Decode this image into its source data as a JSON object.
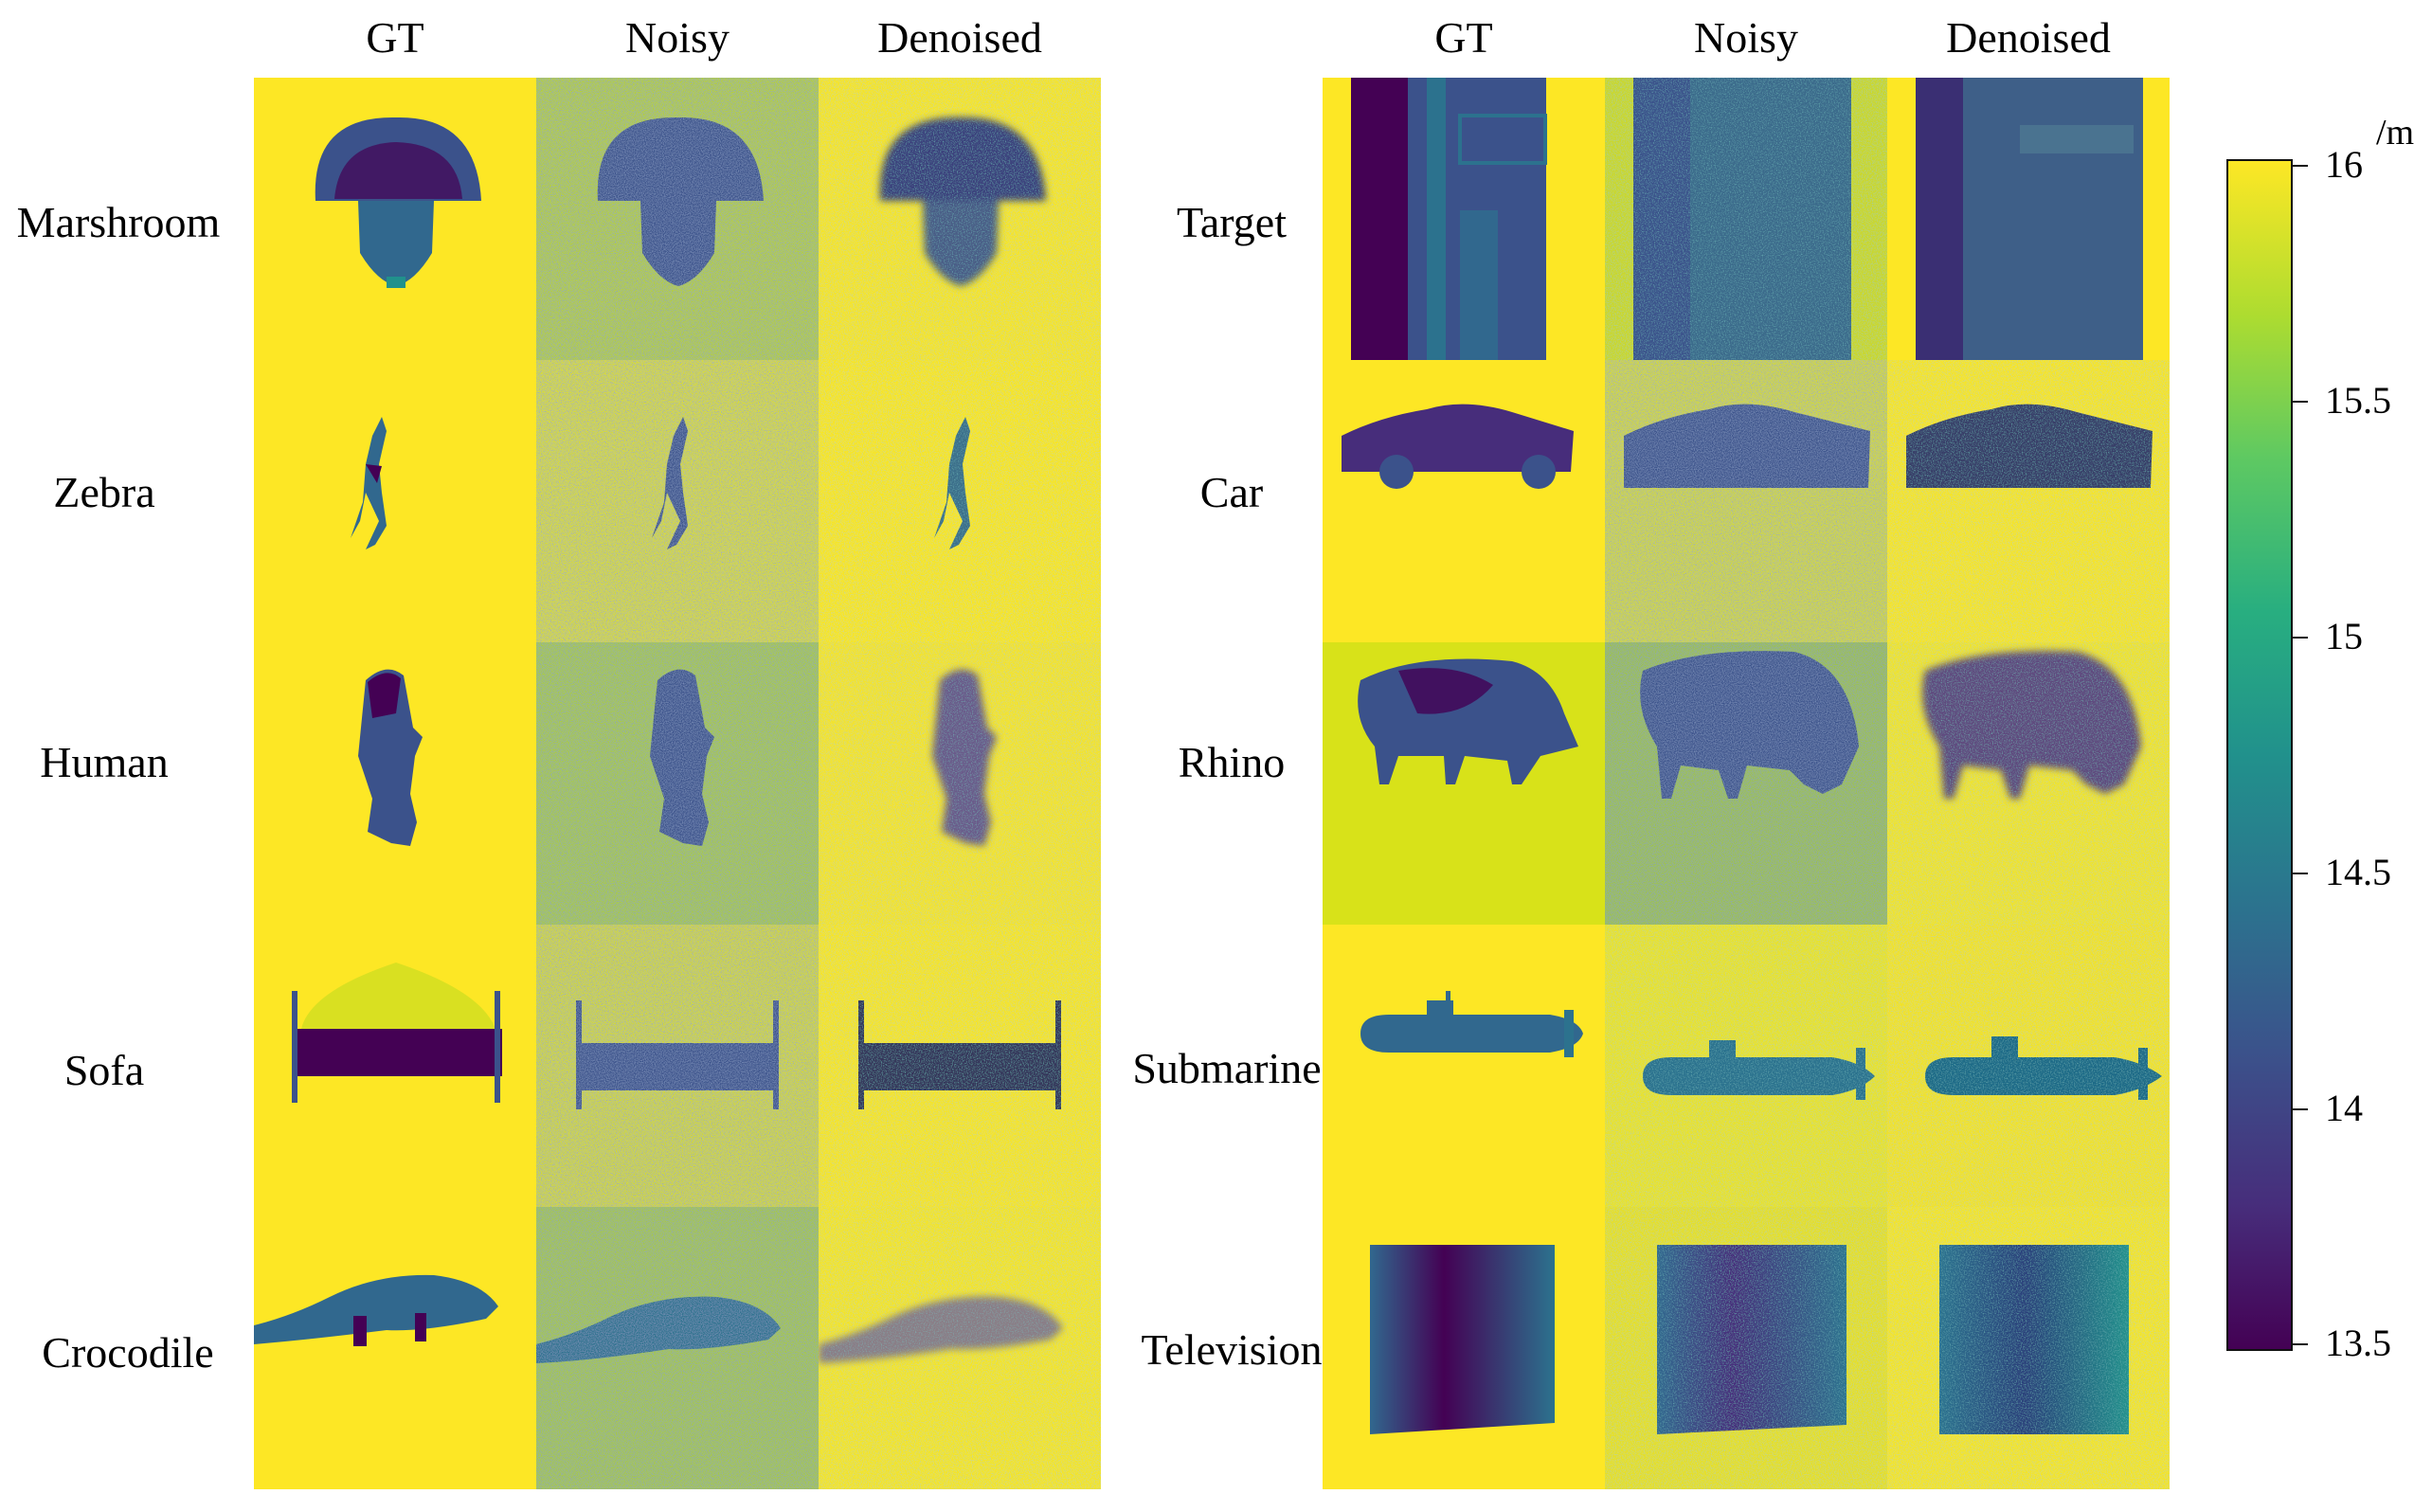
{
  "left_panel": {
    "columns": [
      "GT",
      "Noisy",
      "Denoised"
    ],
    "rows": [
      "Marshroom",
      "Zebra",
      "Human",
      "Sofa",
      "Crocodile"
    ]
  },
  "right_panel": {
    "columns": [
      "GT",
      "Noisy",
      "Denoised"
    ],
    "rows": [
      "Target",
      "Car",
      "Rhino",
      "Submarine",
      "Television"
    ]
  },
  "colorbar": {
    "unit": "/m",
    "ticks": [
      "16",
      "15.5",
      "15",
      "14.5",
      "14",
      "13.5"
    ],
    "colormap": "viridis",
    "min": 13.5,
    "max": 16
  },
  "colors": {
    "background_yellow": "#fde725",
    "object_dark": "#440154",
    "object_mid": "#3b528b",
    "object_teal": "#21918c"
  }
}
